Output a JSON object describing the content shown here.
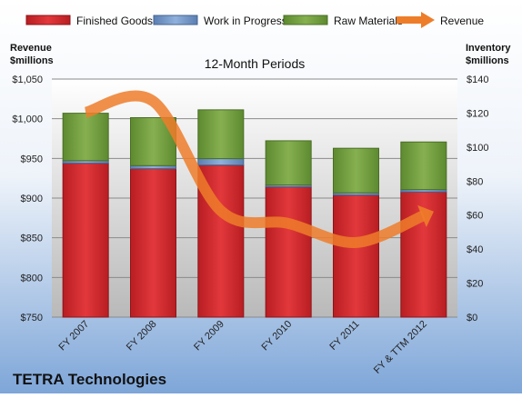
{
  "company": "TETRA Technologies",
  "colors": {
    "finished_goods": "#d8252b",
    "work_in_progress": "#6f93c4",
    "raw_materials": "#6e9c3b",
    "revenue": "#ee7d2a"
  },
  "chart_data": {
    "type": "bar",
    "title": "12-Month Periods",
    "y_left_label_line1": "Revenue",
    "y_left_label_line2": "$millions",
    "y_right_label_line1": "Inventory",
    "y_right_label_line2": "$millions",
    "categories": [
      "FY 2007",
      "FY 2008",
      "FY 2009",
      "FY 2010",
      "FY 2011",
      "FY & TTM 2012"
    ],
    "left_ylim": [
      750,
      1050
    ],
    "left_ticks": [
      750,
      800,
      850,
      900,
      950,
      1000,
      1050
    ],
    "left_tick_labels": [
      "$750",
      "$800",
      "$850",
      "$900",
      "$950",
      "$1,000",
      "$1,050"
    ],
    "right_ylim": [
      0,
      140
    ],
    "right_ticks": [
      0,
      20,
      40,
      60,
      80,
      100,
      120,
      140
    ],
    "right_tick_labels": [
      "$0",
      "$20",
      "$40",
      "$60",
      "$80",
      "$100",
      "$120",
      "$140"
    ],
    "stacked": true,
    "series": [
      {
        "name": "Finished Goods",
        "axis": "right",
        "kind": "bar",
        "values": [
          90.5,
          87.3,
          89.4,
          76.6,
          71.8,
          73.6
        ]
      },
      {
        "name": "Work in Progress",
        "axis": "right",
        "kind": "bar",
        "values": [
          1.5,
          1.8,
          3.8,
          1.1,
          1.3,
          1.4
        ]
      },
      {
        "name": "Raw Materials",
        "axis": "right",
        "kind": "bar",
        "values": [
          27.9,
          28.2,
          28.7,
          26.0,
          26.2,
          28.0
        ]
      },
      {
        "name": "Revenue",
        "axis": "left",
        "kind": "line",
        "values": [
          1008,
          1022,
          884,
          868,
          844,
          878
        ]
      }
    ],
    "legend_position": "top",
    "grid": true
  }
}
